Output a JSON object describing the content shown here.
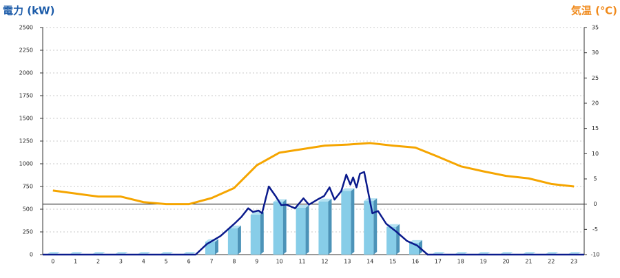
{
  "chart_data": {
    "type": "bar",
    "y_title": "電力 (kW)",
    "y2_title": "気温 (℃)",
    "categories": [
      "0",
      "1",
      "2",
      "3",
      "4",
      "5",
      "6",
      "7",
      "8",
      "9",
      "10",
      "11",
      "12",
      "13",
      "14",
      "15",
      "16",
      "17",
      "18",
      "19",
      "20",
      "21",
      "22",
      "23"
    ],
    "xlim": [
      -0.45,
      23.45
    ],
    "ylim": [
      0,
      2500
    ],
    "yticks": [
      0,
      250,
      500,
      750,
      1000,
      1250,
      1500,
      1750,
      2000,
      2250,
      2500
    ],
    "y2lim": [
      -10,
      35
    ],
    "y2ticks": [
      -10,
      -5,
      0,
      5,
      10,
      15,
      20,
      25,
      30,
      35
    ],
    "grid": true,
    "series": [
      {
        "type": "bar",
        "color": "#87cde8",
        "values": [
          0,
          0,
          0,
          0,
          0,
          0,
          0,
          140,
          290,
          440,
          580,
          515,
          585,
          700,
          590,
          305,
          130,
          0,
          0,
          0,
          0,
          0,
          0,
          0
        ]
      },
      {
        "type": "line",
        "color": "#0a1a8c",
        "x": [
          -0.45,
          6.3,
          6.79,
          7.4,
          8.01,
          8.32,
          8.62,
          8.83,
          9.08,
          9.23,
          9.53,
          9.84,
          10.08,
          10.3,
          10.69,
          11.06,
          11.3,
          11.67,
          11.97,
          12.21,
          12.43,
          12.73,
          12.95,
          13.13,
          13.25,
          13.4,
          13.55,
          13.74,
          14.1,
          14.35,
          14.71,
          15.17,
          15.63,
          16.08,
          16.54,
          23.45
        ],
        "values": [
          0,
          0,
          115,
          205,
          340,
          415,
          510,
          470,
          485,
          455,
          750,
          640,
          545,
          550,
          510,
          620,
          550,
          605,
          645,
          740,
          605,
          700,
          880,
          770,
          850,
          740,
          890,
          910,
          455,
          480,
          340,
          250,
          150,
          100,
          0,
          0
        ]
      },
      {
        "type": "line",
        "axis": "y2",
        "color": "#f5a500",
        "values": [
          2.7,
          2.1,
          1.5,
          1.5,
          0.4,
          0,
          0,
          1.2,
          3.2,
          7.7,
          10.2,
          10.9,
          11.6,
          11.8,
          12.1,
          11.6,
          11.2,
          9.4,
          7.5,
          6.5,
          5.6,
          5.1,
          4.0,
          3.5
        ]
      }
    ]
  }
}
